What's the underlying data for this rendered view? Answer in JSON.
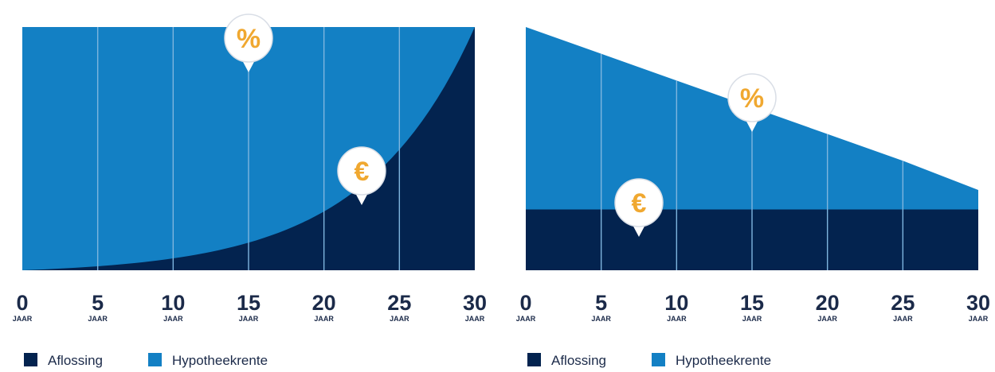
{
  "colors": {
    "aflossing": "#03234f",
    "hypotheekrente": "#1380c4",
    "gridline": "#7fb5de",
    "pin_fill": "#ffffff",
    "pin_symbol": "#f0a830",
    "text": "#1b2a49"
  },
  "chart_data": [
    {
      "type": "area",
      "x": [
        0,
        5,
        10,
        15,
        20,
        25,
        30
      ],
      "tick_labels": [
        "0",
        "5",
        "10",
        "15",
        "20",
        "25",
        "30"
      ],
      "tick_unit": "JAAR",
      "xlim": [
        0,
        30
      ],
      "ylim": [
        0,
        1
      ],
      "grid": true,
      "legend_position": "bottom-left",
      "series": [
        {
          "name": "Aflossing",
          "color": "#03234f",
          "values": [
            0,
            0.01,
            0.05,
            0.14,
            0.31,
            0.57,
            1.0
          ]
        },
        {
          "name": "Hypotheekrente",
          "color": "#1380c4",
          "values": [
            1.0,
            0.99,
            0.95,
            0.86,
            0.69,
            0.43,
            0.0
          ]
        }
      ],
      "markers": [
        {
          "symbol": "%",
          "x": 15
        },
        {
          "symbol": "€",
          "x": 22.5
        }
      ]
    },
    {
      "type": "area",
      "x": [
        0,
        5,
        10,
        15,
        20,
        25,
        30
      ],
      "tick_labels": [
        "0",
        "5",
        "10",
        "15",
        "20",
        "25",
        "30"
      ],
      "tick_unit": "JAAR",
      "xlim": [
        0,
        30
      ],
      "ylim": [
        0,
        1
      ],
      "grid": true,
      "legend_position": "bottom-left",
      "series": [
        {
          "name": "Aflossing",
          "color": "#03234f",
          "values": [
            0.25,
            0.25,
            0.25,
            0.25,
            0.25,
            0.25,
            0.25
          ]
        },
        {
          "name": "Hypotheekrente",
          "color": "#1380c4",
          "values": [
            0.75,
            0.64,
            0.53,
            0.42,
            0.31,
            0.2,
            0.08
          ]
        }
      ],
      "markers": [
        {
          "symbol": "%",
          "x": 15
        },
        {
          "symbol": "€",
          "x": 7.5
        }
      ]
    }
  ],
  "legend": {
    "aflossing_label": "Aflossing",
    "hypotheekrente_label": "Hypotheekrente"
  }
}
